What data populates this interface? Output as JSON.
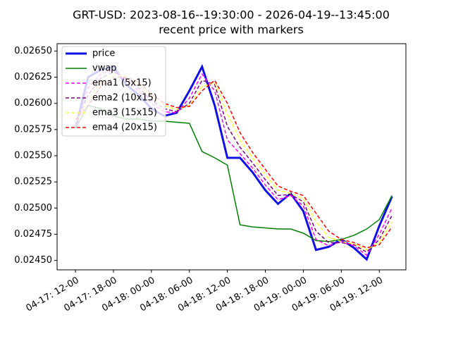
{
  "chart_data": {
    "type": "line",
    "title": "GRT-USD: 2023-08-16--19:30:00 - 2026-04-19--13:45:00",
    "subtitle": "recent price with markers",
    "x": [
      "04-17 12:00",
      "04-17 14:00",
      "04-17 16:00",
      "04-17 18:00",
      "04-17 20:00",
      "04-17 22:00",
      "04-18 00:00",
      "04-18 02:00",
      "04-18 04:00",
      "04-18 06:00",
      "04-18 08:00",
      "04-18 10:00",
      "04-18 12:00",
      "04-18 14:00",
      "04-18 16:00",
      "04-18 18:00",
      "04-18 20:00",
      "04-18 22:00",
      "04-19 00:00",
      "04-19 02:00",
      "04-19 04:00",
      "04-19 06:00",
      "04-19 08:00",
      "04-19 10:00",
      "04-19 12:00",
      "04-19 14:00"
    ],
    "series": [
      {
        "name": "price",
        "color": "#0f0fe6",
        "style": "solid",
        "values": [
          0.02576,
          0.02625,
          0.02632,
          0.02635,
          0.02618,
          0.02608,
          0.02595,
          0.02588,
          0.02591,
          0.02612,
          0.02635,
          0.02598,
          0.02548,
          0.02548,
          0.02534,
          0.02517,
          0.02504,
          0.02514,
          0.02497,
          0.0246,
          0.02463,
          0.0247,
          0.02462,
          0.02451,
          0.02483,
          0.02511
        ]
      },
      {
        "name": "vwap",
        "color": "#008000",
        "style": "solid",
        "values": [
          0.02576,
          0.02598,
          0.02595,
          0.02588,
          0.02585,
          0.02585,
          0.02583,
          0.02583,
          0.02582,
          0.02581,
          0.02554,
          0.02548,
          0.02541,
          0.02484,
          0.02482,
          0.02481,
          0.0248,
          0.0248,
          0.02476,
          0.02469,
          0.02468,
          0.0247,
          0.02474,
          0.0248,
          0.02489,
          0.02512
        ]
      },
      {
        "name": "ema1 (5x15)",
        "color": "#ff00ff",
        "style": "dashed",
        "values": [
          0.02578,
          0.02615,
          0.02628,
          0.02632,
          0.02622,
          0.02612,
          0.026,
          0.02592,
          0.02591,
          0.02605,
          0.02628,
          0.02612,
          0.02565,
          0.02552,
          0.02538,
          0.02522,
          0.02508,
          0.02512,
          0.02502,
          0.0247,
          0.02464,
          0.02468,
          0.02464,
          0.02455,
          0.02475,
          0.025
        ]
      },
      {
        "name": "ema2 (10x15)",
        "color": "#800080",
        "style": "dashed",
        "values": [
          0.0258,
          0.02608,
          0.02624,
          0.0263,
          0.02624,
          0.02615,
          0.02603,
          0.02595,
          0.02592,
          0.026,
          0.02622,
          0.02618,
          0.02578,
          0.02558,
          0.02543,
          0.02527,
          0.02512,
          0.02513,
          0.02506,
          0.02478,
          0.02467,
          0.02467,
          0.02465,
          0.02458,
          0.0247,
          0.02493
        ]
      },
      {
        "name": "ema3 (15x15)",
        "color": "#ffff33",
        "style": "dashed",
        "values": [
          0.02582,
          0.02602,
          0.0262,
          0.02628,
          0.02625,
          0.02618,
          0.02606,
          0.02598,
          0.02594,
          0.02598,
          0.02616,
          0.0262,
          0.0259,
          0.02565,
          0.02548,
          0.02532,
          0.02517,
          0.02514,
          0.02509,
          0.02487,
          0.02472,
          0.02468,
          0.02466,
          0.0246,
          0.02467,
          0.02487
        ]
      },
      {
        "name": "ema4 (20x15)",
        "color": "#ff0000",
        "style": "dashed",
        "values": [
          0.02584,
          0.02598,
          0.02616,
          0.02625,
          0.02625,
          0.0262,
          0.02609,
          0.026,
          0.02596,
          0.02597,
          0.02612,
          0.02622,
          0.026,
          0.02572,
          0.02553,
          0.02537,
          0.02521,
          0.02516,
          0.02512,
          0.02495,
          0.02478,
          0.0247,
          0.02467,
          0.02462,
          0.02465,
          0.02482
        ]
      }
    ],
    "xlim": [
      "04-17 09:06",
      "04-19 16:12"
    ],
    "xticks": [
      {
        "value": "04-17 12:00",
        "label": "04-17: 12-00"
      },
      {
        "value": "04-17 18:00",
        "label": "04-17: 18-00"
      },
      {
        "value": "04-18 00:00",
        "label": "04-18: 00-00"
      },
      {
        "value": "04-18 06:00",
        "label": "04-18: 06-00"
      },
      {
        "value": "04-18 12:00",
        "label": "04-18: 12-00"
      },
      {
        "value": "04-18 18:00",
        "label": "04-18: 18-00"
      },
      {
        "value": "04-19 00:00",
        "label": "04-19: 00-00"
      },
      {
        "value": "04-19 06:00",
        "label": "04-19: 06-00"
      },
      {
        "value": "04-19 12:00",
        "label": "04-19: 12-00"
      }
    ],
    "ylim": [
      0.02441,
      0.02657
    ],
    "yticks": [
      {
        "value": 0.0245,
        "label": "0.02450"
      },
      0.02475,
      {
        "value": 0.025,
        "label": "0.02500"
      },
      0.02525,
      {
        "value": 0.0255,
        "label": "0.02550"
      },
      0.02575,
      {
        "value": 0.026,
        "label": "0.02600"
      },
      0.02625,
      {
        "value": 0.0265,
        "label": "0.02650"
      }
    ],
    "legend": "upper left"
  }
}
